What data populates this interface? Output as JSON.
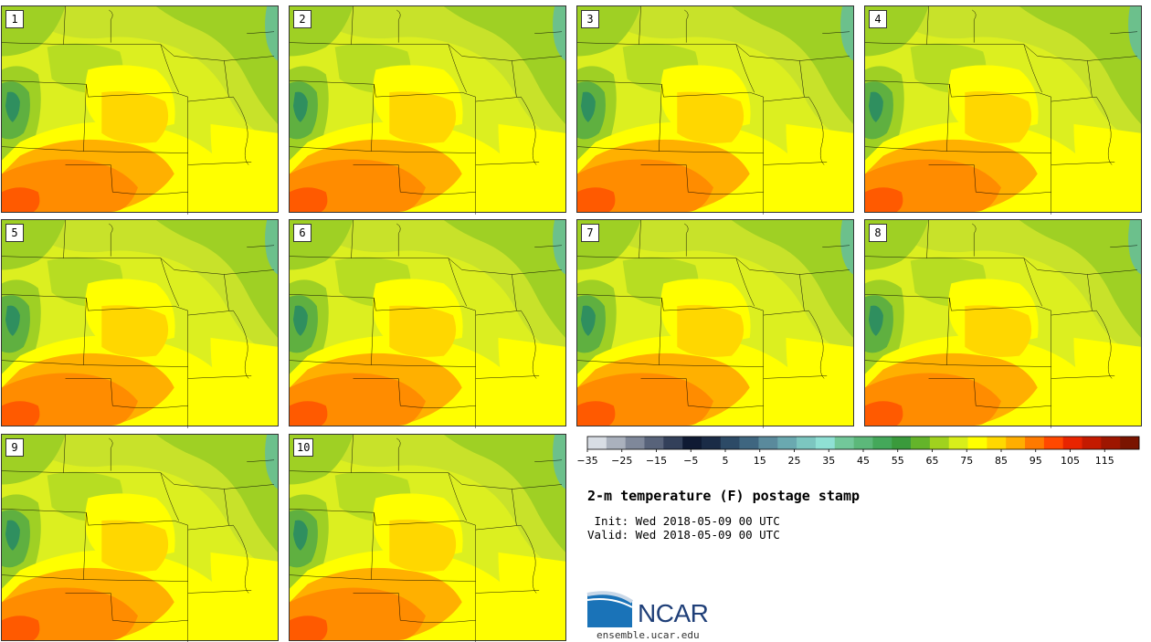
{
  "members": [
    "1",
    "2",
    "3",
    "4",
    "5",
    "6",
    "7",
    "8",
    "9",
    "10"
  ],
  "map_colors": {
    "green_dark": "#2f8f5f",
    "green_mid": "#5fb040",
    "green_light": "#9fd024",
    "yellow_green": "#c8e22a",
    "lime": "#dcef20",
    "yellow": "#ffff00",
    "gold": "#ffd700",
    "orange_light": "#ffb000",
    "orange": "#ff8c00",
    "red_orange": "#ff5a00",
    "lake": "#6cc08c"
  },
  "colorbar": {
    "ticks": [
      "−35",
      "−25",
      "−15",
      "−5",
      "5",
      "15",
      "25",
      "35",
      "45",
      "55",
      "65",
      "75",
      "85",
      "95",
      "105",
      "115"
    ],
    "colors": [
      "#d8dde4",
      "#aab1bd",
      "#7f889a",
      "#58637a",
      "#33405a",
      "#0f1a33",
      "#1a2b46",
      "#2c4a66",
      "#3f6680",
      "#5a8a9c",
      "#6aa9b0",
      "#7cc6c0",
      "#8fe0d4",
      "#72c89a",
      "#5cb87a",
      "#44a85a",
      "#3a9a3c",
      "#64b42a",
      "#a0d21e",
      "#d8ee1a",
      "#ffff00",
      "#ffd800",
      "#ffae00",
      "#ff7a00",
      "#ff4800",
      "#e82400",
      "#c41a00",
      "#9e1600",
      "#7a1400"
    ]
  },
  "title": "2-m temperature (F) postage stamp",
  "init_line": " Init: Wed 2018-05-09 00 UTC",
  "valid_line": "Valid: Wed 2018-05-09 00 UTC",
  "logo": {
    "name": "NCAR",
    "site": "ensemble.ucar.edu",
    "color": "#1f3f78",
    "accent": "#2a8fd0"
  }
}
